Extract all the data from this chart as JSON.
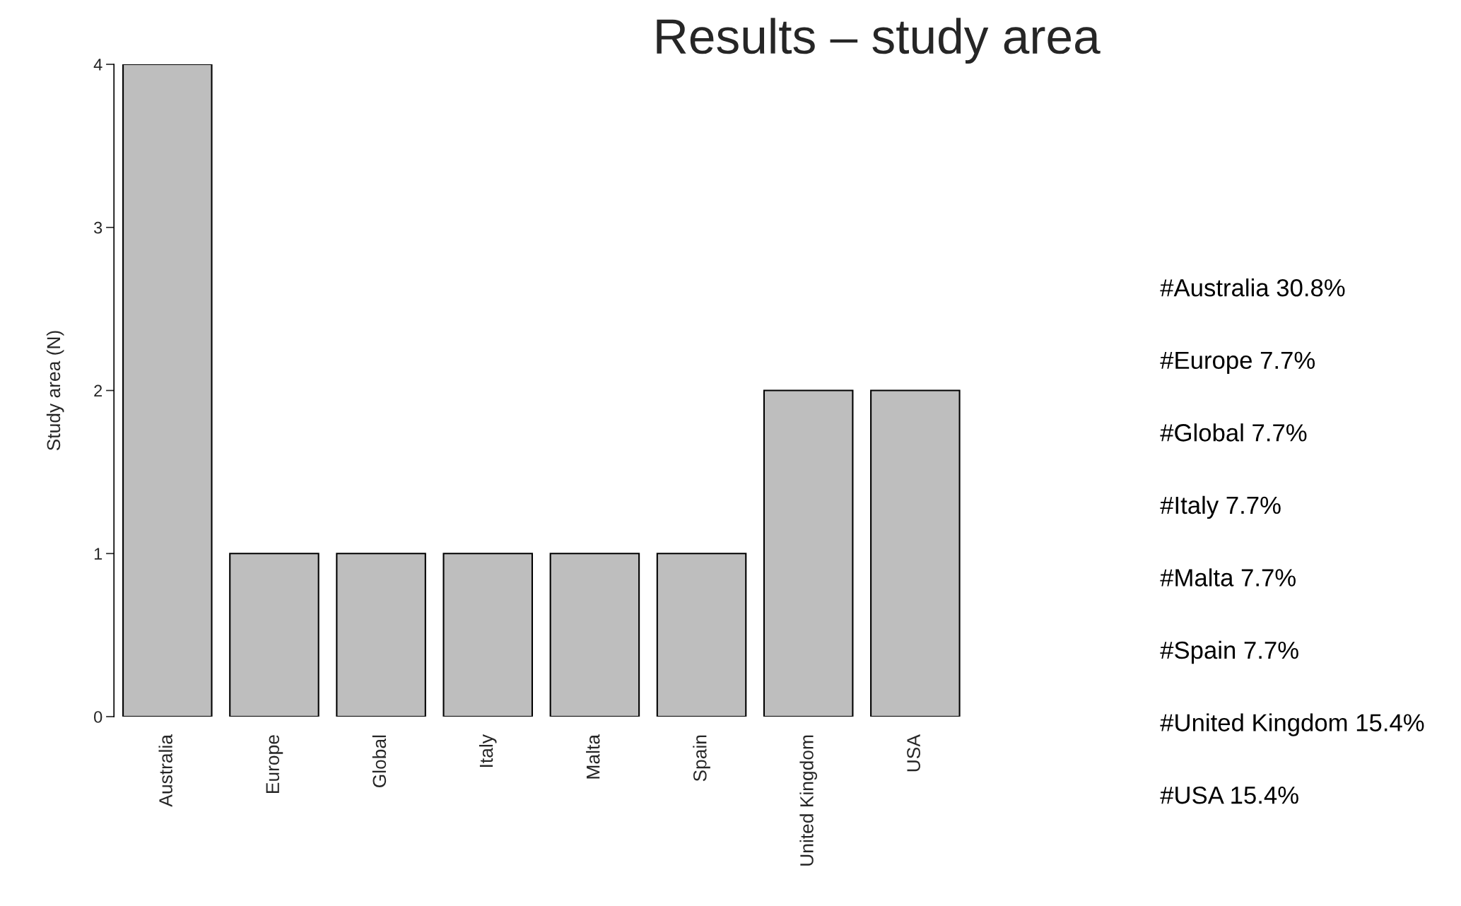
{
  "chart_data": {
    "type": "bar",
    "title": "Results – study area",
    "ylabel": "Study area (N)",
    "categories": [
      "Australia",
      "Europe",
      "Global",
      "Italy",
      "Malta",
      "Spain",
      "United Kingdom",
      "USA"
    ],
    "values": [
      4,
      1,
      1,
      1,
      1,
      1,
      2,
      2
    ],
    "color": "#bebebe",
    "ylim": [
      0,
      4
    ],
    "yticks": [
      0,
      1,
      2,
      3,
      4
    ],
    "grid": false,
    "annotations": [
      "#Australia 30.8%",
      "#Europe 7.7%",
      "#Global 7.7%",
      "#Italy 7.7%",
      "#Malta 7.7%",
      "#Spain 7.7%",
      "#United Kingdom 15.4%",
      "#USA 15.4%"
    ]
  }
}
